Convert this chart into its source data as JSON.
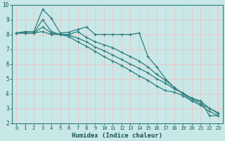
{
  "xlabel": "Humidex (Indice chaleur)",
  "bg_color": "#c8e8e8",
  "grid_color": "#e8c8c8",
  "line_color": "#2e7d7d",
  "xlim": [
    -0.5,
    23.5
  ],
  "ylim": [
    2,
    10
  ],
  "xtick_labels": [
    "0",
    "1",
    "2",
    "3",
    "4",
    "5",
    "6",
    "7",
    "8",
    "9",
    "10",
    "11",
    "12",
    "13",
    "14",
    "15",
    "16",
    "17",
    "18",
    "19",
    "20",
    "21",
    "22",
    "23"
  ],
  "ytick_labels": [
    "2",
    "3",
    "4",
    "5",
    "6",
    "7",
    "8",
    "9",
    "10"
  ],
  "xticks": [
    0,
    1,
    2,
    3,
    4,
    5,
    6,
    7,
    8,
    9,
    10,
    11,
    12,
    13,
    14,
    15,
    16,
    17,
    18,
    19,
    20,
    21,
    22,
    23
  ],
  "yticks": [
    2,
    3,
    4,
    5,
    6,
    7,
    8,
    9,
    10
  ],
  "series": [
    [
      8.1,
      8.2,
      8.2,
      9.7,
      9.1,
      8.1,
      8.15,
      8.35,
      8.5,
      8.0,
      8.0,
      8.0,
      8.0,
      8.0,
      8.1,
      6.5,
      5.8,
      5.0,
      4.4,
      4.0,
      3.5,
      3.5,
      2.5,
      2.5
    ],
    [
      8.1,
      8.1,
      8.1,
      9.0,
      8.2,
      8.0,
      8.0,
      8.2,
      7.8,
      7.5,
      7.3,
      7.1,
      6.8,
      6.5,
      6.2,
      5.8,
      5.3,
      4.9,
      4.4,
      4.0,
      3.7,
      3.5,
      3.0,
      2.7
    ],
    [
      8.1,
      8.1,
      8.1,
      8.5,
      8.1,
      8.0,
      7.95,
      7.75,
      7.5,
      7.15,
      6.9,
      6.6,
      6.3,
      6.0,
      5.7,
      5.4,
      5.0,
      4.7,
      4.3,
      4.05,
      3.65,
      3.3,
      3.0,
      2.65
    ],
    [
      8.1,
      8.1,
      8.1,
      8.2,
      8.0,
      8.0,
      7.85,
      7.5,
      7.2,
      6.85,
      6.5,
      6.2,
      5.9,
      5.55,
      5.2,
      4.9,
      4.5,
      4.2,
      4.1,
      3.85,
      3.5,
      3.2,
      2.8,
      2.5
    ]
  ]
}
